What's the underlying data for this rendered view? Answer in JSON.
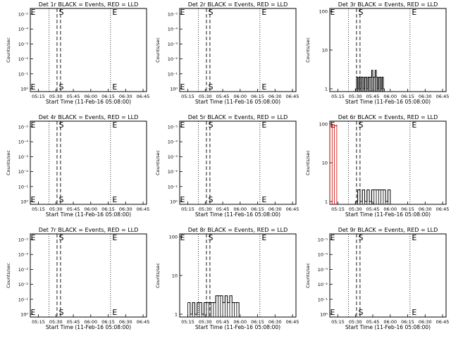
{
  "figure": {
    "xlabel": "Start Time (11-Feb-16 05:08:00)",
    "ylabel": "Counts/sec",
    "x_ticks": [
      "05:15",
      "05:30",
      "05:45",
      "06:00",
      "06:15",
      "06:30",
      "06:45"
    ]
  },
  "chart_data": [
    {
      "type": "line",
      "title": "Det 1r BLACK = Events, RED = LLD",
      "ylabel": "Counts/sec",
      "xlabel": "Start Time (11-Feb-16 05:08:00)",
      "y_scale": "log",
      "y_ticks": [
        "10⁰",
        "10⁻¹",
        "10⁻²",
        "10⁻³",
        "10⁻⁴",
        "10⁻⁵"
      ],
      "markers": [
        {
          "label": "E"
        },
        {
          "label": "S"
        },
        {
          "label": "E"
        }
      ],
      "series": []
    },
    {
      "type": "line",
      "title": "Det 2r BLACK = Events, RED = LLD",
      "ylabel": "Counts/sec",
      "xlabel": "Start Time (11-Feb-16 05:08:00)",
      "y_scale": "log",
      "y_ticks": [
        "10⁰",
        "10⁻¹",
        "10⁻²",
        "10⁻³",
        "10⁻⁴",
        "10⁻⁵"
      ],
      "markers": [
        {
          "label": "E"
        },
        {
          "label": "S"
        },
        {
          "label": "E"
        }
      ],
      "series": []
    },
    {
      "type": "line",
      "title": "Det 3r BLACK = Events, RED = LLD",
      "ylabel": "Counts/sec",
      "xlabel": "Start Time (11-Feb-16 05:08:00)",
      "y_scale": "log",
      "y_ticks": [
        "100",
        "10",
        "1"
      ],
      "markers": [
        {
          "label": "E"
        },
        {
          "label": "S"
        },
        {
          "label": "E"
        }
      ],
      "series": [
        {
          "color": "#000000",
          "x": [
            "05:30",
            "05:31",
            "05:32",
            "05:33",
            "05:34",
            "05:35",
            "05:36",
            "05:37",
            "05:38",
            "05:39",
            "05:40",
            "05:41",
            "05:42",
            "05:43",
            "05:44",
            "05:45",
            "05:46",
            "05:47",
            "05:48",
            "05:49",
            "05:50",
            "05:51",
            "05:52",
            "05:53",
            "05:54",
            "05:55"
          ],
          "y": [
            1,
            2,
            1,
            2,
            1,
            2,
            2,
            1,
            2,
            2,
            1,
            2,
            2,
            2,
            3,
            2,
            2,
            3,
            2,
            1,
            2,
            2,
            1,
            2,
            1,
            1
          ]
        }
      ]
    },
    {
      "type": "line",
      "title": "Det 4r BLACK = Events, RED = LLD",
      "ylabel": "Counts/sec",
      "xlabel": "Start Time (11-Feb-16 05:08:00)",
      "y_scale": "log",
      "y_ticks": [
        "10⁰",
        "10⁻¹",
        "10⁻²",
        "10⁻³",
        "10⁻⁴",
        "10⁻⁵"
      ],
      "markers": [
        {
          "label": "E"
        },
        {
          "label": "S"
        },
        {
          "label": "E"
        }
      ],
      "series": []
    },
    {
      "type": "line",
      "title": "Det 5r BLACK = Events, RED = LLD",
      "ylabel": "Counts/sec",
      "xlabel": "Start Time (11-Feb-16 05:08:00)",
      "y_scale": "log",
      "y_ticks": [
        "10⁰",
        "10⁻¹",
        "10⁻²",
        "10⁻³",
        "10⁻⁴",
        "10⁻⁵"
      ],
      "markers": [
        {
          "label": "E"
        },
        {
          "label": "S"
        },
        {
          "label": "E"
        }
      ],
      "series": []
    },
    {
      "type": "line",
      "title": "Det 6r BLACK = Events, RED = LLD",
      "ylabel": "Counts/sec",
      "xlabel": "Start Time (11-Feb-16 05:08:00)",
      "y_scale": "log",
      "y_ticks": [
        "100",
        "10",
        "1"
      ],
      "markers": [
        {
          "label": "E"
        },
        {
          "label": "S"
        },
        {
          "label": "E"
        }
      ],
      "series": [
        {
          "color": "#000000",
          "x": [
            "05:30",
            "05:32",
            "05:34",
            "05:36",
            "05:38",
            "05:40",
            "05:42",
            "05:44",
            "05:46",
            "05:48",
            "05:50",
            "05:52",
            "05:54",
            "05:56",
            "05:58",
            "06:00"
          ],
          "y": [
            1,
            2,
            1,
            2,
            1,
            2,
            1,
            2,
            2,
            2,
            2,
            2,
            2,
            1,
            2,
            1
          ]
        },
        {
          "color": "#cc0000",
          "x": [
            "05:08",
            "05:10",
            "05:12",
            "05:14"
          ],
          "y": [
            100,
            95,
            90,
            95
          ]
        }
      ]
    },
    {
      "type": "line",
      "title": "Det 7r BLACK = Events, RED = LLD",
      "ylabel": "Counts/sec",
      "xlabel": "Start Time (11-Feb-16 05:08:00)",
      "y_scale": "log",
      "y_ticks": [
        "10⁰",
        "10⁻¹",
        "10⁻²",
        "10⁻³",
        "10⁻⁴",
        "10⁻⁵"
      ],
      "markers": [
        {
          "label": "E"
        },
        {
          "label": "S"
        },
        {
          "label": "E"
        }
      ],
      "series": []
    },
    {
      "type": "line",
      "title": "Det 8r BLACK = Events, RED = LLD",
      "ylabel": "Counts/sec",
      "xlabel": "Start Time (11-Feb-16 05:08:00)",
      "y_scale": "log",
      "y_ticks": [
        "100",
        "10",
        "1"
      ],
      "markers": [
        {
          "label": "E"
        },
        {
          "label": "S"
        },
        {
          "label": "E"
        }
      ],
      "series": [
        {
          "color": "#000000",
          "x": [
            "05:15",
            "05:17",
            "05:19",
            "05:21",
            "05:23",
            "05:25",
            "05:27",
            "05:29",
            "05:31",
            "05:33",
            "05:35",
            "05:37",
            "05:39",
            "05:41",
            "05:43",
            "05:45",
            "05:47",
            "05:49",
            "05:51",
            "05:53",
            "05:55",
            "05:57",
            "05:59"
          ],
          "y": [
            2,
            1,
            2,
            1,
            2,
            2,
            1,
            2,
            2,
            2,
            2,
            2,
            3,
            3,
            3,
            2,
            3,
            2,
            3,
            2,
            2,
            2,
            1
          ]
        }
      ]
    },
    {
      "type": "line",
      "title": "Det 9r BLACK = Events, RED = LLD",
      "ylabel": "Counts/sec",
      "xlabel": "Start Time (11-Feb-16 05:08:00)",
      "y_scale": "log",
      "y_ticks": [
        "10⁰",
        "10⁻¹",
        "10⁻²",
        "10⁻³",
        "10⁻⁴",
        "10⁻⁵"
      ],
      "markers": [
        {
          "label": "E"
        },
        {
          "label": "S"
        },
        {
          "label": "E"
        }
      ],
      "series": []
    }
  ]
}
